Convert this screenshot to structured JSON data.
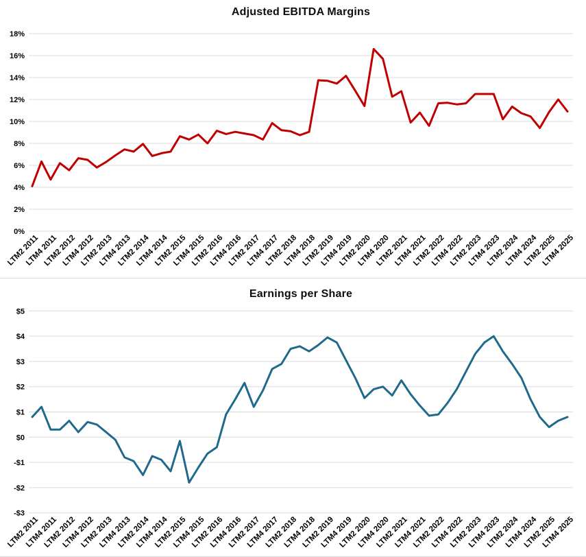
{
  "page": {
    "background_color": "#FFFFFF",
    "gridline_color": "#D9D9D9"
  },
  "chart_data": [
    {
      "type": "line",
      "title": "Adjusted EBITDA Margins",
      "line_color": "#C00000",
      "grid": true,
      "legend": false,
      "unit": "percent",
      "ylim": [
        0,
        18
      ],
      "y_tick_labels": [
        "0%",
        "2%",
        "4%",
        "6%",
        "8%",
        "10%",
        "12%",
        "14%",
        "16%",
        "18%"
      ],
      "y_tick_values": [
        0,
        2,
        4,
        6,
        8,
        10,
        12,
        14,
        16,
        18
      ],
      "x_tick_every": 2,
      "x_tick_rotation": -45,
      "x_tick_labels": [
        "LTM2 2011",
        "LTM4 2011",
        "LTM2 2012",
        "LTM4 2012",
        "LTM2 2013",
        "LTM4 2013",
        "LTM2 2014",
        "LTM4 2014",
        "LTM2 2015",
        "LTM4 2015",
        "LTM2 2016",
        "LTM4 2016",
        "LTM2 2017",
        "LTM4 2017",
        "LTM2 2018",
        "LTM4 2018",
        "LTM2 2019",
        "LTM4 2019",
        "LTM2 2020",
        "LTM4 2020",
        "LTM2 2021",
        "LTM4 2021",
        "LTM2 2022",
        "LTM4 2022",
        "LTM2 2023",
        "LTM4 2023",
        "LTM2 2024",
        "LTM4 2024",
        "LTM2 2025",
        "LTM4 2025"
      ],
      "values": [
        4.1,
        6.35,
        4.7,
        6.2,
        5.55,
        6.65,
        6.5,
        5.8,
        6.3,
        6.9,
        7.45,
        7.25,
        7.95,
        6.85,
        7.1,
        7.25,
        8.65,
        8.35,
        8.8,
        8.0,
        9.15,
        8.85,
        9.05,
        8.9,
        8.75,
        8.35,
        9.85,
        9.2,
        9.1,
        8.75,
        9.05,
        13.75,
        13.7,
        13.45,
        14.15,
        12.8,
        11.4,
        16.6,
        15.7,
        12.25,
        12.75,
        9.9,
        10.8,
        9.6,
        11.65,
        11.7,
        11.55,
        11.65,
        12.5,
        12.5,
        12.5,
        10.2,
        11.35,
        10.75,
        10.45,
        9.4,
        10.85,
        12.0,
        10.9
      ]
    },
    {
      "type": "line",
      "title": "Earnings per Share",
      "line_color": "#1F6A8C",
      "grid": true,
      "legend": false,
      "unit": "dollars",
      "ylim": [
        -3,
        5
      ],
      "y_tick_labels": [
        "-$3",
        "-$2",
        "-$1",
        "$0",
        "$1",
        "$2",
        "$3",
        "$4",
        "$5"
      ],
      "y_tick_values": [
        -3,
        -2,
        -1,
        0,
        1,
        2,
        3,
        4,
        5
      ],
      "x_tick_every": 2,
      "x_tick_rotation": -45,
      "x_tick_labels": [
        "LTM2 2011",
        "LTM4 2011",
        "LTM2 2012",
        "LTM4 2012",
        "LTM2 2013",
        "LTM4 2013",
        "LTM2 2014",
        "LTM4 2014",
        "LTM2 2015",
        "LTM4 2015",
        "LTM2 2016",
        "LTM4 2016",
        "LTM2 2017",
        "LTM4 2017",
        "LTM2 2018",
        "LTM4 2018",
        "LTM2 2019",
        "LTM4 2019",
        "LTM2 2020",
        "LTM4 2020",
        "LTM2 2021",
        "LTM4 2021",
        "LTM2 2022",
        "LTM4 2022",
        "LTM2 2023",
        "LTM4 2023",
        "LTM2 2024",
        "LTM4 2024",
        "LTM2 2025",
        "LTM4 2025"
      ],
      "values": [
        0.8,
        1.2,
        0.3,
        0.3,
        0.65,
        0.2,
        0.6,
        0.5,
        0.2,
        -0.1,
        -0.8,
        -0.95,
        -1.5,
        -0.75,
        -0.9,
        -1.35,
        -0.15,
        -1.8,
        -1.2,
        -0.65,
        -0.4,
        0.9,
        1.5,
        2.15,
        1.2,
        1.85,
        2.7,
        2.9,
        3.5,
        3.6,
        3.4,
        3.65,
        3.95,
        3.75,
        3.05,
        2.35,
        1.55,
        1.9,
        2.0,
        1.65,
        2.25,
        1.7,
        1.25,
        0.85,
        0.9,
        1.35,
        1.9,
        2.6,
        3.3,
        3.75,
        4.0,
        3.4,
        2.9,
        2.35,
        1.5,
        0.8,
        0.4,
        0.65,
        0.8
      ]
    }
  ]
}
